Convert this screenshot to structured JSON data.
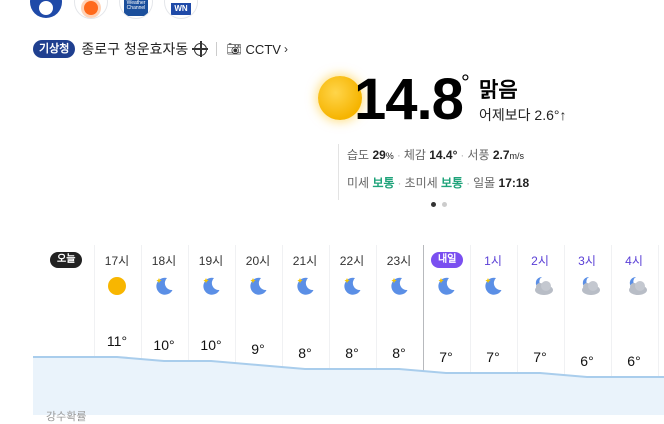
{
  "providers": [
    {
      "name": "kma-logo",
      "text": ""
    },
    {
      "name": "sun-logo",
      "text": ""
    },
    {
      "name": "weather-channel-logo",
      "text": "Weather Channel"
    },
    {
      "name": "weathernews-logo",
      "text": "WN"
    }
  ],
  "location": {
    "source_badge": "기상청",
    "name": "종로구 청운효자동",
    "cctv_label": "CCTV",
    "cctv_chevron": "›"
  },
  "current": {
    "temp": "14.8",
    "deg": "°",
    "condition": "맑음",
    "compare": "어제보다 2.6°↑",
    "humidity_label": "습도",
    "humidity_value": "29",
    "humidity_unit": "%",
    "feels_label": "체감",
    "feels_value": "14.4°",
    "wind_label": "서풍",
    "wind_value": "2.7",
    "wind_unit": "m/s",
    "dust_label": "미세",
    "dust_value": "보통",
    "fine_dust_label": "초미세",
    "fine_dust_value": "보통",
    "sunset_label": "일몰",
    "sunset_value": "17:18",
    "colors": {
      "good": "#1fa37a",
      "accent": "#7a4ff0"
    }
  },
  "hourly": {
    "today_label": "오늘",
    "tomorrow_label": "내일",
    "hours": [
      {
        "label": "17시",
        "icon": "sun-icon",
        "temp": "11°",
        "night": false
      },
      {
        "label": "18시",
        "icon": "moon-icon",
        "temp": "10°",
        "night": false
      },
      {
        "label": "19시",
        "icon": "moon-icon",
        "temp": "10°",
        "night": false
      },
      {
        "label": "20시",
        "icon": "moon-icon",
        "temp": "9°",
        "night": false
      },
      {
        "label": "21시",
        "icon": "moon-icon",
        "temp": "8°",
        "night": false
      },
      {
        "label": "22시",
        "icon": "moon-icon",
        "temp": "8°",
        "night": false
      },
      {
        "label": "23시",
        "icon": "moon-icon",
        "temp": "8°",
        "night": false
      },
      {
        "label": "",
        "icon": "moon-icon",
        "temp": "7°",
        "night": true
      },
      {
        "label": "1시",
        "icon": "moon-icon",
        "temp": "7°",
        "night": true
      },
      {
        "label": "2시",
        "icon": "cloudy-night-icon",
        "temp": "7°",
        "night": true
      },
      {
        "label": "3시",
        "icon": "cloudy-night-icon",
        "temp": "6°",
        "night": true
      },
      {
        "label": "4시",
        "icon": "cloudy-night-icon",
        "temp": "6°",
        "night": true
      }
    ],
    "temps_numeric": [
      11,
      10,
      10,
      9,
      8,
      8,
      8,
      7,
      7,
      7,
      6,
      6
    ],
    "bottom_label": "강수확률"
  }
}
